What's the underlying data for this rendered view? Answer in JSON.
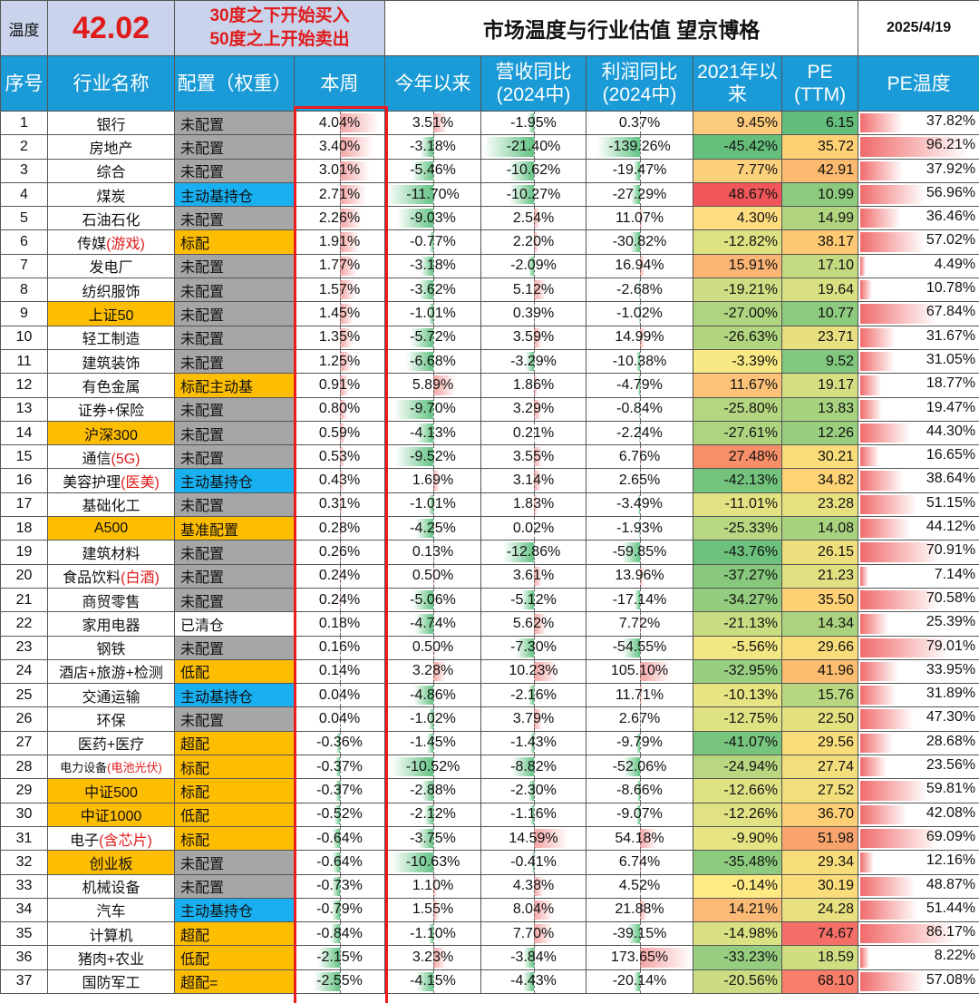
{
  "header": {
    "temp_label": "温度",
    "temp_value": "42.02",
    "rule_buy": "30度之下开始买入",
    "rule_sell": "50度之上开始卖出",
    "title": "市场温度与行业估值 望京博格",
    "date": "2025/4/19"
  },
  "columns": {
    "idx": "序号",
    "name": "行业名称",
    "cfg": "配置（权重）",
    "week": "本周",
    "ytd": "今年以来",
    "rev_1": "营收同比",
    "rev_2": "(2024中)",
    "prof_1": "利润同比",
    "prof_2": "(2024中)",
    "since_1": "2021年以",
    "since_2": "来",
    "pe_1": "PE",
    "pe_2": "(TTM)",
    "pet": "PE温度"
  },
  "colors": {
    "cfg_none": "#a6a6a6",
    "cfg_active": "#18b0f0",
    "cfg_std": "#fdbd00",
    "highlight_box": "#ee1c1c",
    "header_bg": "#1a9bd7"
  },
  "rows": [
    {
      "idx": "1",
      "name": "银行",
      "hl": false,
      "cfg": "未配置",
      "cfgType": "none",
      "week": "4.04%",
      "ytd": "3.51%",
      "rev": "-1.95%",
      "prof": "0.37%",
      "since": "9.45%",
      "pe": "6.15",
      "pet": "37.82%"
    },
    {
      "idx": "2",
      "name": "房地产",
      "hl": false,
      "cfg": "未配置",
      "cfgType": "none",
      "week": "3.40%",
      "ytd": "-3.18%",
      "rev": "-21.40%",
      "prof": "-139.26%",
      "since": "-45.42%",
      "pe": "35.72",
      "pet": "96.21%"
    },
    {
      "idx": "3",
      "name": "综合",
      "hl": false,
      "cfg": "未配置",
      "cfgType": "none",
      "week": "3.01%",
      "ytd": "-5.46%",
      "rev": "-10.62%",
      "prof": "-19.47%",
      "since": "7.77%",
      "pe": "42.91",
      "pet": "37.92%"
    },
    {
      "idx": "4",
      "name": "煤炭",
      "hl": false,
      "cfg": "主动基持仓",
      "cfgType": "active",
      "week": "2.71%",
      "ytd": "-11.70%",
      "rev": "-10.27%",
      "prof": "-27.29%",
      "since": "48.67%",
      "pe": "10.99",
      "pet": "56.96%"
    },
    {
      "idx": "5",
      "name": "石油石化",
      "hl": false,
      "cfg": "未配置",
      "cfgType": "none",
      "week": "2.26%",
      "ytd": "-9.03%",
      "rev": "2.54%",
      "prof": "11.07%",
      "since": "4.30%",
      "pe": "14.99",
      "pet": "36.46%"
    },
    {
      "idx": "6",
      "name": "传媒",
      "nameRed": "(游戏)",
      "hl": false,
      "cfg": "标配",
      "cfgType": "std",
      "week": "1.91%",
      "ytd": "-0.77%",
      "rev": "2.20%",
      "prof": "-30.82%",
      "since": "-12.82%",
      "pe": "38.17",
      "pet": "57.02%"
    },
    {
      "idx": "7",
      "name": "发电厂",
      "hl": false,
      "cfg": "未配置",
      "cfgType": "none",
      "week": "1.77%",
      "ytd": "-3.18%",
      "rev": "-2.09%",
      "prof": "16.94%",
      "since": "15.91%",
      "pe": "17.10",
      "pet": "4.49%"
    },
    {
      "idx": "8",
      "name": "纺织服饰",
      "hl": false,
      "cfg": "未配置",
      "cfgType": "none",
      "week": "1.57%",
      "ytd": "-3.62%",
      "rev": "5.12%",
      "prof": "-2.68%",
      "since": "-19.21%",
      "pe": "19.64",
      "pet": "10.78%"
    },
    {
      "idx": "9",
      "name": "上证50",
      "hl": true,
      "cfg": "未配置",
      "cfgType": "none",
      "week": "1.45%",
      "ytd": "-1.01%",
      "rev": "0.39%",
      "prof": "-1.02%",
      "since": "-27.00%",
      "pe": "10.77",
      "pet": "67.84%"
    },
    {
      "idx": "10",
      "name": "轻工制造",
      "hl": false,
      "cfg": "未配置",
      "cfgType": "none",
      "week": "1.35%",
      "ytd": "-5.72%",
      "rev": "3.59%",
      "prof": "14.99%",
      "since": "-26.63%",
      "pe": "23.71",
      "pet": "31.67%"
    },
    {
      "idx": "11",
      "name": "建筑装饰",
      "hl": false,
      "cfg": "未配置",
      "cfgType": "none",
      "week": "1.25%",
      "ytd": "-6.68%",
      "rev": "-3.29%",
      "prof": "-10.38%",
      "since": "-3.39%",
      "pe": "9.52",
      "pet": "31.05%"
    },
    {
      "idx": "12",
      "name": "有色金属",
      "hl": false,
      "cfg": "标配主动基",
      "cfgType": "std",
      "week": "0.91%",
      "ytd": "5.89%",
      "rev": "1.86%",
      "prof": "-4.79%",
      "since": "11.67%",
      "pe": "19.17",
      "pet": "18.77%"
    },
    {
      "idx": "13",
      "name": "证券+保险",
      "hl": false,
      "cfg": "未配置",
      "cfgType": "none",
      "week": "0.80%",
      "ytd": "-9.70%",
      "rev": "3.29%",
      "prof": "-0.84%",
      "since": "-25.80%",
      "pe": "13.83",
      "pet": "19.47%"
    },
    {
      "idx": "14",
      "name": "沪深300",
      "hl": true,
      "cfg": "未配置",
      "cfgType": "none",
      "week": "0.59%",
      "ytd": "-4.13%",
      "rev": "0.21%",
      "prof": "-2.24%",
      "since": "-27.61%",
      "pe": "12.26",
      "pet": "44.30%"
    },
    {
      "idx": "15",
      "name": "通信",
      "nameRed": "(5G)",
      "hl": false,
      "cfg": "未配置",
      "cfgType": "none",
      "week": "0.53%",
      "ytd": "-9.52%",
      "rev": "3.55%",
      "prof": "6.76%",
      "since": "27.48%",
      "pe": "30.21",
      "pet": "16.65%"
    },
    {
      "idx": "16",
      "name": "美容护理",
      "nameRed": "(医美)",
      "hl": false,
      "cfg": "主动基持仓",
      "cfgType": "active",
      "week": "0.43%",
      "ytd": "1.69%",
      "rev": "3.14%",
      "prof": "2.65%",
      "since": "-42.13%",
      "pe": "34.82",
      "pet": "38.64%"
    },
    {
      "idx": "17",
      "name": "基础化工",
      "hl": false,
      "cfg": "未配置",
      "cfgType": "none",
      "week": "0.31%",
      "ytd": "-1.01%",
      "rev": "1.83%",
      "prof": "-3.49%",
      "since": "-11.01%",
      "pe": "23.28",
      "pet": "51.15%"
    },
    {
      "idx": "18",
      "name": "A500",
      "hl": true,
      "cfg": "基准配置",
      "cfgType": "std",
      "week": "0.28%",
      "ytd": "-4.25%",
      "rev": "0.02%",
      "prof": "-1.93%",
      "since": "-25.33%",
      "pe": "14.08",
      "pet": "44.12%"
    },
    {
      "idx": "19",
      "name": "建筑材料",
      "hl": false,
      "cfg": "未配置",
      "cfgType": "none",
      "week": "0.26%",
      "ytd": "0.13%",
      "rev": "-12.86%",
      "prof": "-59.85%",
      "since": "-43.76%",
      "pe": "26.15",
      "pet": "70.91%"
    },
    {
      "idx": "20",
      "name": "食品饮料",
      "nameRed": "(白酒)",
      "hl": false,
      "cfg": "未配置",
      "cfgType": "none",
      "week": "0.24%",
      "ytd": "0.50%",
      "rev": "3.61%",
      "prof": "13.96%",
      "since": "-37.27%",
      "pe": "21.23",
      "pet": "7.14%"
    },
    {
      "idx": "21",
      "name": "商贸零售",
      "hl": false,
      "cfg": "未配置",
      "cfgType": "none",
      "week": "0.24%",
      "ytd": "-5.06%",
      "rev": "-5.12%",
      "prof": "-17.14%",
      "since": "-34.27%",
      "pe": "35.50",
      "pet": "70.58%"
    },
    {
      "idx": "22",
      "name": "家用电器",
      "hl": false,
      "cfg": "已清仓",
      "cfgType": "clear",
      "week": "0.18%",
      "ytd": "-4.74%",
      "rev": "5.62%",
      "prof": "7.72%",
      "since": "-21.13%",
      "pe": "14.34",
      "pet": "25.39%"
    },
    {
      "idx": "23",
      "name": "钢铁",
      "hl": false,
      "cfg": "未配置",
      "cfgType": "none",
      "week": "0.16%",
      "ytd": "0.50%",
      "rev": "-7.30%",
      "prof": "-54.55%",
      "since": "-5.56%",
      "pe": "29.66",
      "pet": "79.01%"
    },
    {
      "idx": "24",
      "name": "酒店+旅游+检测",
      "hl": false,
      "cfg": "低配",
      "cfgType": "std",
      "week": "0.14%",
      "ytd": "3.28%",
      "rev": "10.23%",
      "prof": "105.10%",
      "since": "-32.95%",
      "pe": "41.96",
      "pet": "33.95%"
    },
    {
      "idx": "25",
      "name": "交通运输",
      "hl": false,
      "cfg": "主动基持仓",
      "cfgType": "active",
      "week": "0.04%",
      "ytd": "-4.86%",
      "rev": "-2.16%",
      "prof": "11.71%",
      "since": "-10.13%",
      "pe": "15.76",
      "pet": "31.89%"
    },
    {
      "idx": "26",
      "name": "环保",
      "hl": false,
      "cfg": "未配置",
      "cfgType": "none",
      "week": "0.04%",
      "ytd": "-1.02%",
      "rev": "3.79%",
      "prof": "2.67%",
      "since": "-12.75%",
      "pe": "22.50",
      "pet": "47.30%"
    },
    {
      "idx": "27",
      "name": "医药+医疗",
      "hl": false,
      "cfg": "超配",
      "cfgType": "over",
      "week": "-0.36%",
      "ytd": "-1.45%",
      "rev": "-1.43%",
      "prof": "-9.79%",
      "since": "-41.07%",
      "pe": "29.56",
      "pet": "28.68%"
    },
    {
      "idx": "28",
      "name": "电力设备",
      "nameRed": "(电池光伏)",
      "small": true,
      "hl": false,
      "cfg": "标配",
      "cfgType": "std",
      "week": "-0.37%",
      "ytd": "-10.52%",
      "rev": "-8.82%",
      "prof": "-52.06%",
      "since": "-24.94%",
      "pe": "27.74",
      "pet": "23.56%"
    },
    {
      "idx": "29",
      "name": "中证500",
      "hl": true,
      "cfg": "标配",
      "cfgType": "std",
      "week": "-0.37%",
      "ytd": "-2.88%",
      "rev": "-2.30%",
      "prof": "-8.66%",
      "since": "-12.66%",
      "pe": "27.52",
      "pet": "59.81%"
    },
    {
      "idx": "30",
      "name": "中证1000",
      "hl": true,
      "cfg": "低配",
      "cfgType": "std",
      "week": "-0.52%",
      "ytd": "-2.12%",
      "rev": "-1.16%",
      "prof": "-9.07%",
      "since": "-12.26%",
      "pe": "36.70",
      "pet": "42.08%"
    },
    {
      "idx": "31",
      "name": "电子",
      "nameRed": "(含芯片)",
      "hl": false,
      "cfg": "标配",
      "cfgType": "std",
      "week": "-0.64%",
      "ytd": "-3.75%",
      "rev": "14.59%",
      "prof": "54.18%",
      "since": "-9.90%",
      "pe": "51.98",
      "pet": "69.09%"
    },
    {
      "idx": "32",
      "name": "创业板",
      "hl": true,
      "cfg": "未配置",
      "cfgType": "none",
      "week": "-0.64%",
      "ytd": "-10.63%",
      "rev": "-0.41%",
      "prof": "6.74%",
      "since": "-35.48%",
      "pe": "29.34",
      "pet": "12.16%"
    },
    {
      "idx": "33",
      "name": "机械设备",
      "hl": false,
      "cfg": "未配置",
      "cfgType": "none",
      "week": "-0.73%",
      "ytd": "1.10%",
      "rev": "4.38%",
      "prof": "4.52%",
      "since": "-0.14%",
      "pe": "30.19",
      "pet": "48.87%"
    },
    {
      "idx": "34",
      "name": "汽车",
      "hl": false,
      "cfg": "主动基持仓",
      "cfgType": "active",
      "week": "-0.79%",
      "ytd": "1.55%",
      "rev": "8.04%",
      "prof": "21.88%",
      "since": "14.21%",
      "pe": "24.28",
      "pet": "51.44%"
    },
    {
      "idx": "35",
      "name": "计算机",
      "hl": false,
      "cfg": "超配",
      "cfgType": "over",
      "week": "-0.84%",
      "ytd": "-1.10%",
      "rev": "7.70%",
      "prof": "-39.15%",
      "since": "-14.98%",
      "pe": "74.67",
      "pet": "86.17%"
    },
    {
      "idx": "36",
      "name": "猪肉+农业",
      "hl": false,
      "cfg": "低配",
      "cfgType": "std",
      "week": "-2.15%",
      "ytd": "3.23%",
      "rev": "-3.84%",
      "prof": "173.65%",
      "since": "-33.23%",
      "pe": "18.59",
      "pet": "8.22%"
    },
    {
      "idx": "37",
      "name": "国防军工",
      "hl": false,
      "cfg": "超配=",
      "cfgType": "over",
      "week": "-2.55%",
      "ytd": "-4.15%",
      "rev": "-4.43%",
      "prof": "-20.14%",
      "since": "-20.56%",
      "pe": "68.10",
      "pet": "57.08%"
    }
  ]
}
